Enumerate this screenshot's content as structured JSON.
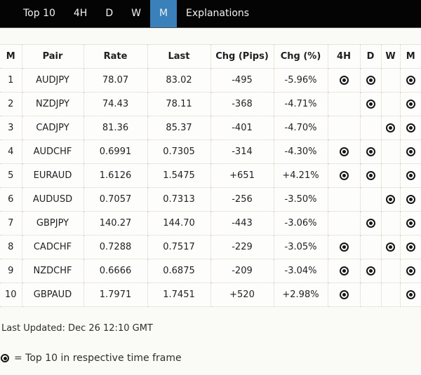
{
  "nav": {
    "tabs": [
      {
        "id": "top10",
        "label": "Top 10",
        "active": false
      },
      {
        "id": "4h",
        "label": "4H",
        "active": false
      },
      {
        "id": "d",
        "label": "D",
        "active": false
      },
      {
        "id": "w",
        "label": "W",
        "active": false
      },
      {
        "id": "m",
        "label": "M",
        "active": true
      },
      {
        "id": "explanations",
        "label": "Explanations",
        "active": false
      }
    ]
  },
  "table": {
    "columns": [
      {
        "key": "rank",
        "label": "M"
      },
      {
        "key": "pair",
        "label": "Pair"
      },
      {
        "key": "rate",
        "label": "Rate"
      },
      {
        "key": "last",
        "label": "Last"
      },
      {
        "key": "chg_pips",
        "label": "Chg (Pips)"
      },
      {
        "key": "chg_pct",
        "label": "Chg (%)"
      },
      {
        "key": "tf_4h",
        "label": "4H"
      },
      {
        "key": "tf_d",
        "label": "D"
      },
      {
        "key": "tf_w",
        "label": "W"
      },
      {
        "key": "tf_m",
        "label": "M"
      }
    ],
    "rows": [
      {
        "rank": "1",
        "pair": "AUDJPY",
        "rate": "78.07",
        "last": "83.02",
        "chg_pips": "-495",
        "chg_pct": "-5.96%",
        "tf_4h": true,
        "tf_d": true,
        "tf_w": false,
        "tf_m": true
      },
      {
        "rank": "2",
        "pair": "NZDJPY",
        "rate": "74.43",
        "last": "78.11",
        "chg_pips": "-368",
        "chg_pct": "-4.71%",
        "tf_4h": false,
        "tf_d": true,
        "tf_w": false,
        "tf_m": true
      },
      {
        "rank": "3",
        "pair": "CADJPY",
        "rate": "81.36",
        "last": "85.37",
        "chg_pips": "-401",
        "chg_pct": "-4.70%",
        "tf_4h": false,
        "tf_d": false,
        "tf_w": true,
        "tf_m": true
      },
      {
        "rank": "4",
        "pair": "AUDCHF",
        "rate": "0.6991",
        "last": "0.7305",
        "chg_pips": "-314",
        "chg_pct": "-4.30%",
        "tf_4h": true,
        "tf_d": true,
        "tf_w": false,
        "tf_m": true
      },
      {
        "rank": "5",
        "pair": "EURAUD",
        "rate": "1.6126",
        "last": "1.5475",
        "chg_pips": "+651",
        "chg_pct": "+4.21%",
        "tf_4h": true,
        "tf_d": true,
        "tf_w": false,
        "tf_m": true
      },
      {
        "rank": "6",
        "pair": "AUDUSD",
        "rate": "0.7057",
        "last": "0.7313",
        "chg_pips": "-256",
        "chg_pct": "-3.50%",
        "tf_4h": false,
        "tf_d": false,
        "tf_w": true,
        "tf_m": true
      },
      {
        "rank": "7",
        "pair": "GBPJPY",
        "rate": "140.27",
        "last": "144.70",
        "chg_pips": "-443",
        "chg_pct": "-3.06%",
        "tf_4h": false,
        "tf_d": true,
        "tf_w": false,
        "tf_m": true
      },
      {
        "rank": "8",
        "pair": "CADCHF",
        "rate": "0.7288",
        "last": "0.7517",
        "chg_pips": "-229",
        "chg_pct": "-3.05%",
        "tf_4h": true,
        "tf_d": false,
        "tf_w": true,
        "tf_m": true
      },
      {
        "rank": "9",
        "pair": "NZDCHF",
        "rate": "0.6666",
        "last": "0.6875",
        "chg_pips": "-209",
        "chg_pct": "-3.04%",
        "tf_4h": true,
        "tf_d": true,
        "tf_w": false,
        "tf_m": true
      },
      {
        "rank": "10",
        "pair": "GBPAUD",
        "rate": "1.7971",
        "last": "1.7451",
        "chg_pips": "+520",
        "chg_pct": "+2.98%",
        "tf_4h": true,
        "tf_d": false,
        "tf_w": false,
        "tf_m": true
      }
    ]
  },
  "footer": {
    "last_updated": "Last Updated: Dec 26 12:10 GMT",
    "legend_text": "= Top 10 in respective time frame"
  },
  "icons": {
    "top10_marker": "bullseye-icon"
  },
  "colors": {
    "nav_bg": "#040404",
    "active_tab_blue": "#3a80ba",
    "page_bg": "#fafbf7",
    "table_border": "#d9d0ba",
    "text": "#222222"
  }
}
